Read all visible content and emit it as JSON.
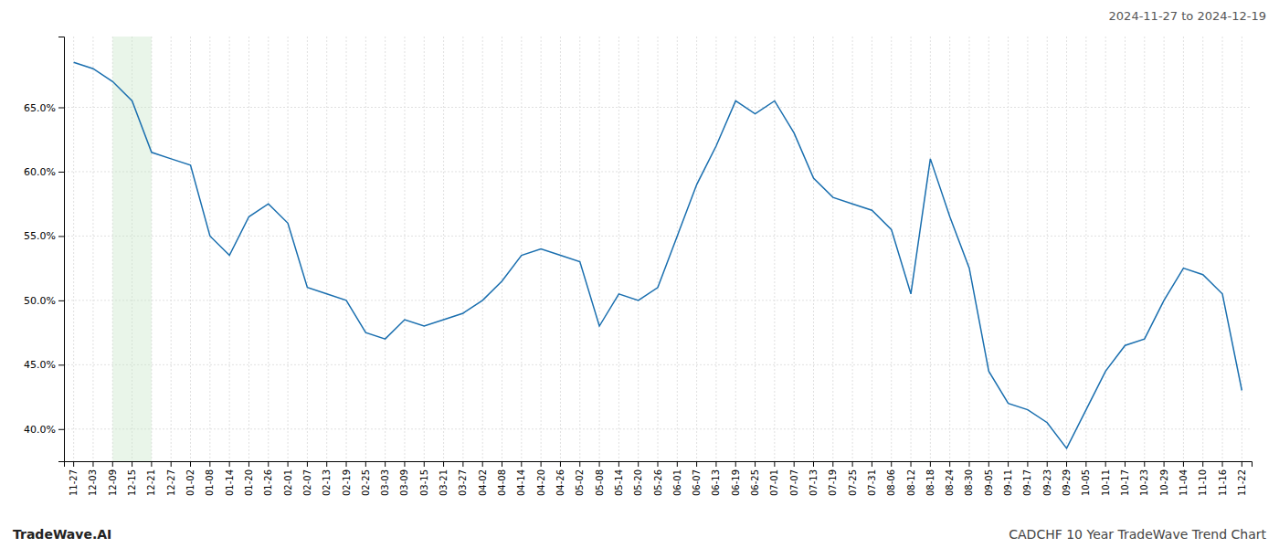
{
  "chart_data": {
    "type": "line",
    "title": "CADCHF 10 Year TradeWave Trend Chart",
    "subtitle": "2024-11-27 to 2024-12-19",
    "annotations": [
      "TradeWave.AI"
    ],
    "categories": [
      "11-27",
      "12-03",
      "12-09",
      "12-15",
      "12-21",
      "12-27",
      "01-02",
      "01-08",
      "01-14",
      "01-20",
      "01-26",
      "02-01",
      "02-07",
      "02-13",
      "02-19",
      "02-25",
      "03-03",
      "03-09",
      "03-15",
      "03-21",
      "03-27",
      "04-02",
      "04-08",
      "04-14",
      "04-20",
      "04-26",
      "05-02",
      "05-08",
      "05-14",
      "05-20",
      "05-26",
      "06-01",
      "06-07",
      "06-13",
      "06-19",
      "06-25",
      "07-01",
      "07-07",
      "07-13",
      "07-19",
      "07-25",
      "07-31",
      "08-06",
      "08-12",
      "08-18",
      "08-24",
      "08-30",
      "09-05",
      "09-11",
      "09-17",
      "09-23",
      "09-29",
      "10-05",
      "10-11",
      "10-17",
      "10-23",
      "10-29",
      "11-04",
      "11-10",
      "11-16",
      "11-22"
    ],
    "values": [
      68.5,
      68.0,
      67.0,
      65.5,
      61.5,
      61.0,
      60.5,
      55.0,
      53.5,
      56.5,
      57.5,
      56.0,
      51.0,
      50.5,
      50.0,
      47.5,
      47.0,
      48.5,
      48.0,
      48.5,
      49.0,
      50.0,
      51.5,
      53.5,
      54.0,
      53.5,
      53.0,
      48.0,
      50.5,
      50.0,
      51.0,
      55.0,
      59.0,
      62.0,
      65.5,
      64.5,
      65.5,
      63.0,
      59.5,
      58.0,
      57.5,
      57.0,
      55.5,
      50.5,
      61.0,
      56.5,
      52.5,
      44.5,
      42.0,
      41.5,
      40.5,
      38.5,
      41.5,
      44.5,
      46.5,
      47.0,
      50.0,
      52.5,
      52.0,
      50.5,
      43.0
    ],
    "color": "#1a6faf",
    "highlight": {
      "from": "12-09",
      "to": "12-21",
      "color": "#c8e6c9"
    },
    "ylim": [
      37.5,
      70.5
    ],
    "yticks": [
      {
        "value": 40.0,
        "label": "40.0%"
      },
      {
        "value": 45.0,
        "label": "45.0%"
      },
      {
        "value": 50.0,
        "label": "50.0%"
      },
      {
        "value": 55.0,
        "label": "55.0%"
      },
      {
        "value": 60.0,
        "label": "60.0%"
      },
      {
        "value": 65.0,
        "label": "65.0%"
      }
    ],
    "grid": true
  }
}
